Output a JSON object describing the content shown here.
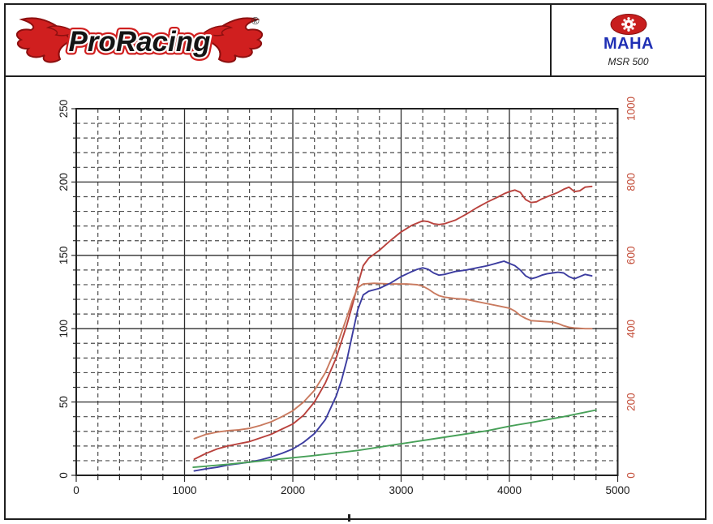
{
  "header": {
    "brand_name": "ProRacing",
    "registered_mark": "®",
    "device_brand": "MAHA",
    "device_model": "MSR 500"
  },
  "colors": {
    "logo_red": "#d01f1f",
    "logo_dark_red": "#8c0f0f",
    "maha_blue": "#1f2fb4",
    "maha_red": "#c81e1e",
    "axis_black": "#1a1a1a",
    "right_axis_red": "#c4503c",
    "curve_red": "#b9423d",
    "curve_salmon": "#c97a5f",
    "curve_blue": "#3c3ca0",
    "curve_green": "#47a058"
  },
  "chart_data": {
    "type": "line",
    "x_axis": {
      "range": [
        0,
        5000
      ],
      "major_ticks": [
        0,
        1000,
        2000,
        3000,
        4000,
        5000
      ],
      "labels": [
        "0",
        "1000",
        "2000",
        "3000",
        "4000",
        "5000"
      ],
      "minor_step": 200
    },
    "y_left_axis": {
      "range": [
        0,
        250
      ],
      "major_ticks": [
        0,
        50,
        100,
        150,
        200,
        250
      ],
      "labels": [
        "0",
        "50",
        "100",
        "150",
        "200",
        "250"
      ],
      "minor_step": 10,
      "color": "#1a1a1a"
    },
    "y_right_axis": {
      "range": [
        0,
        1000
      ],
      "major_ticks": [
        0,
        200,
        400,
        600,
        800,
        1000
      ],
      "labels": [
        "0",
        "200",
        "400",
        "600",
        "800",
        "1000"
      ],
      "color": "#c4503c"
    },
    "grid": {
      "major": "solid",
      "minor": "dashed"
    },
    "legend": "none",
    "series": [
      {
        "name": "red-power-curve",
        "color": "#b9423d",
        "axis": "left",
        "points": [
          [
            1090,
            11
          ],
          [
            1200,
            15
          ],
          [
            1300,
            18
          ],
          [
            1400,
            20
          ],
          [
            1500,
            21.5
          ],
          [
            1600,
            23
          ],
          [
            1700,
            25.5
          ],
          [
            1800,
            28
          ],
          [
            1900,
            31.5
          ],
          [
            2000,
            35
          ],
          [
            2100,
            41
          ],
          [
            2200,
            50
          ],
          [
            2300,
            63
          ],
          [
            2400,
            80
          ],
          [
            2500,
            103
          ],
          [
            2550,
            116
          ],
          [
            2600,
            130
          ],
          [
            2650,
            143
          ],
          [
            2700,
            148
          ],
          [
            2800,
            153.5
          ],
          [
            2900,
            160
          ],
          [
            3000,
            166
          ],
          [
            3100,
            170.5
          ],
          [
            3150,
            172
          ],
          [
            3200,
            173.5
          ],
          [
            3250,
            173
          ],
          [
            3300,
            171.5
          ],
          [
            3350,
            171
          ],
          [
            3400,
            171.5
          ],
          [
            3500,
            174
          ],
          [
            3600,
            178
          ],
          [
            3700,
            182.5
          ],
          [
            3800,
            186.5
          ],
          [
            3900,
            190
          ],
          [
            3950,
            192
          ],
          [
            4000,
            193.5
          ],
          [
            4050,
            194.5
          ],
          [
            4100,
            193
          ],
          [
            4150,
            188
          ],
          [
            4200,
            186
          ],
          [
            4250,
            186.5
          ],
          [
            4300,
            188.5
          ],
          [
            4350,
            190
          ],
          [
            4400,
            191.5
          ],
          [
            4450,
            193
          ],
          [
            4500,
            195
          ],
          [
            4550,
            196.5
          ],
          [
            4600,
            193.5
          ],
          [
            4650,
            194
          ],
          [
            4700,
            196.5
          ],
          [
            4760,
            197
          ]
        ]
      },
      {
        "name": "salmon-torque-curve",
        "color": "#c97a5f",
        "axis": "left",
        "points": [
          [
            1090,
            25
          ],
          [
            1200,
            28
          ],
          [
            1300,
            29.5
          ],
          [
            1400,
            30.5
          ],
          [
            1500,
            31
          ],
          [
            1600,
            32
          ],
          [
            1700,
            34
          ],
          [
            1800,
            36.5
          ],
          [
            1900,
            40
          ],
          [
            2000,
            44
          ],
          [
            2100,
            50
          ],
          [
            2200,
            58
          ],
          [
            2300,
            70
          ],
          [
            2400,
            87
          ],
          [
            2500,
            108
          ],
          [
            2550,
            119
          ],
          [
            2600,
            128
          ],
          [
            2650,
            130.5
          ],
          [
            2750,
            131
          ],
          [
            2900,
            130.5
          ],
          [
            3050,
            130.5
          ],
          [
            3150,
            130
          ],
          [
            3200,
            129
          ],
          [
            3250,
            127
          ],
          [
            3300,
            124.5
          ],
          [
            3350,
            122.5
          ],
          [
            3400,
            121.5
          ],
          [
            3500,
            120.5
          ],
          [
            3600,
            120
          ],
          [
            3700,
            118.5
          ],
          [
            3800,
            117
          ],
          [
            3900,
            115.5
          ],
          [
            4000,
            114
          ],
          [
            4050,
            112
          ],
          [
            4100,
            109
          ],
          [
            4150,
            107
          ],
          [
            4200,
            105.5
          ],
          [
            4300,
            105
          ],
          [
            4400,
            104.5
          ],
          [
            4450,
            103.5
          ],
          [
            4500,
            102
          ],
          [
            4550,
            101
          ],
          [
            4600,
            100.5
          ],
          [
            4700,
            100
          ],
          [
            4760,
            100
          ]
        ]
      },
      {
        "name": "blue-power-curve",
        "color": "#3c3ca0",
        "axis": "left",
        "points": [
          [
            1090,
            3
          ],
          [
            1200,
            4.5
          ],
          [
            1300,
            5.5
          ],
          [
            1400,
            7
          ],
          [
            1500,
            8
          ],
          [
            1600,
            9
          ],
          [
            1700,
            10.5
          ],
          [
            1800,
            12.5
          ],
          [
            1900,
            15
          ],
          [
            2000,
            18
          ],
          [
            2100,
            22.5
          ],
          [
            2200,
            28.5
          ],
          [
            2300,
            38
          ],
          [
            2400,
            54
          ],
          [
            2450,
            65
          ],
          [
            2500,
            79
          ],
          [
            2550,
            96
          ],
          [
            2600,
            113
          ],
          [
            2650,
            123
          ],
          [
            2700,
            125.5
          ],
          [
            2800,
            127.5
          ],
          [
            2900,
            131
          ],
          [
            3000,
            135.5
          ],
          [
            3100,
            139
          ],
          [
            3150,
            140.5
          ],
          [
            3200,
            141.5
          ],
          [
            3250,
            140.5
          ],
          [
            3300,
            138
          ],
          [
            3350,
            136.5
          ],
          [
            3400,
            137
          ],
          [
            3500,
            139
          ],
          [
            3600,
            140
          ],
          [
            3700,
            141.5
          ],
          [
            3800,
            143
          ],
          [
            3900,
            145
          ],
          [
            3950,
            146
          ],
          [
            4000,
            144.5
          ],
          [
            4050,
            143
          ],
          [
            4100,
            140
          ],
          [
            4150,
            136
          ],
          [
            4200,
            134
          ],
          [
            4250,
            135
          ],
          [
            4300,
            136.5
          ],
          [
            4350,
            137.5
          ],
          [
            4400,
            138
          ],
          [
            4450,
            138.5
          ],
          [
            4500,
            138
          ],
          [
            4550,
            135.5
          ],
          [
            4600,
            134
          ],
          [
            4650,
            135.5
          ],
          [
            4700,
            137
          ],
          [
            4760,
            136
          ]
        ]
      },
      {
        "name": "green-aux-curve",
        "color": "#47a058",
        "axis": "left",
        "points": [
          [
            1080,
            5.5
          ],
          [
            1400,
            7.5
          ],
          [
            1800,
            10.5
          ],
          [
            2200,
            13.5
          ],
          [
            2600,
            17
          ],
          [
            3000,
            21.5
          ],
          [
            3400,
            26
          ],
          [
            3800,
            30.5
          ],
          [
            4000,
            33.5
          ],
          [
            4200,
            36
          ],
          [
            4500,
            40
          ],
          [
            4800,
            44.5
          ]
        ]
      }
    ]
  }
}
